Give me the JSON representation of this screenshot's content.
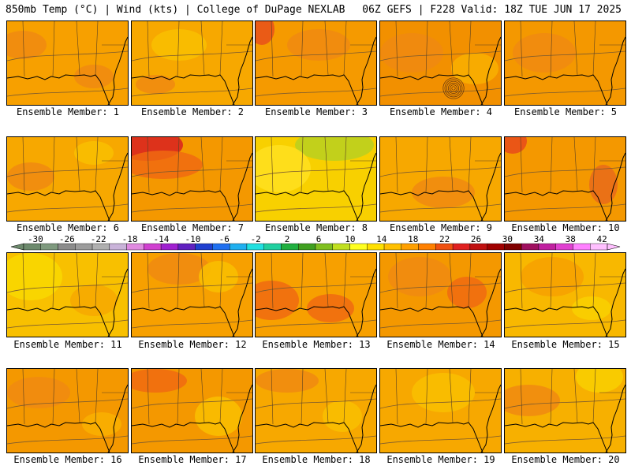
{
  "header": {
    "left": "850mb Temp (°C) | Wind (kts) | College of DuPage NEXLAB",
    "right": "06Z GEFS | F228 Valid: 18Z TUE JUN 17 2025"
  },
  "members": [
    {
      "label": "Ensemble Member: 1"
    },
    {
      "label": "Ensemble Member: 2"
    },
    {
      "label": "Ensemble Member: 3"
    },
    {
      "label": "Ensemble Member: 4"
    },
    {
      "label": "Ensemble Member: 5"
    },
    {
      "label": "Ensemble Member: 6"
    },
    {
      "label": "Ensemble Member: 7"
    },
    {
      "label": "Ensemble Member: 8"
    },
    {
      "label": "Ensemble Member: 9"
    },
    {
      "label": "Ensemble Member: 10"
    },
    {
      "label": "Ensemble Member: 11"
    },
    {
      "label": "Ensemble Member: 12"
    },
    {
      "label": "Ensemble Member: 13"
    },
    {
      "label": "Ensemble Member: 14"
    },
    {
      "label": "Ensemble Member: 15"
    },
    {
      "label": "Ensemble Member: 16"
    },
    {
      "label": "Ensemble Member: 17"
    },
    {
      "label": "Ensemble Member: 18"
    },
    {
      "label": "Ensemble Member: 19"
    },
    {
      "label": "Ensemble Member: 20"
    }
  ],
  "colorbar": {
    "tick_labels": [
      "-30",
      "-26",
      "-22",
      "-18",
      "-14",
      "-10",
      "-6",
      "-2",
      "2",
      "6",
      "10",
      "14",
      "18",
      "22",
      "26",
      "30",
      "34",
      "38",
      "42"
    ],
    "colors": [
      "#6d8a6d",
      "#7f9a7f",
      "#8c8c8c",
      "#9c9c9c",
      "#b0b0b0",
      "#c9b3d9",
      "#e08ae0",
      "#d040d0",
      "#a020d0",
      "#6020c0",
      "#2040d0",
      "#2070f0",
      "#20b0f0",
      "#20e0e0",
      "#20d0a0",
      "#20b040",
      "#40a020",
      "#80c020",
      "#c0e020",
      "#ffff20",
      "#ffe000",
      "#ffc000",
      "#ffa000",
      "#ff8000",
      "#f05010",
      "#e02020",
      "#c01010",
      "#a00000",
      "#800000",
      "#a01060",
      "#c020a0",
      "#e040d0",
      "#ff80ff",
      "#ffc0ff"
    ]
  }
}
